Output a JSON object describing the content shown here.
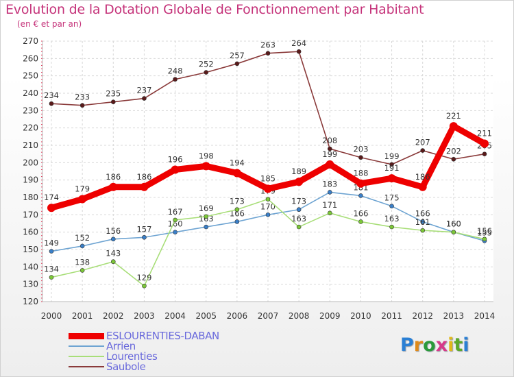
{
  "title": "Evolution de la Dotation Globale de Fonctionnement par Habitant",
  "subtitle": "(en € et par an)",
  "logo": {
    "text": "Proxiti",
    "colors": [
      "#2a7fd4",
      "#e08a1a",
      "#2a9a3a",
      "#d63a8a",
      "#e0b81a",
      "#5aa82a",
      "#2a7fd4"
    ]
  },
  "chart_data": {
    "type": "line",
    "title": "Evolution de la Dotation Globale de Fonctionnement par Habitant",
    "subtitle": "(en € et par an)",
    "x": [
      "2000",
      "2001",
      "2002",
      "2003",
      "2004",
      "2005",
      "2006",
      "2007",
      "2008",
      "2009",
      "2010",
      "2011",
      "2012",
      "2013",
      "2014"
    ],
    "ylim": [
      120,
      270
    ],
    "yticks": [
      "120",
      "130",
      "140",
      "150",
      "160",
      "170",
      "180",
      "190",
      "200",
      "210",
      "220",
      "230",
      "240",
      "250",
      "260",
      "270"
    ],
    "grid": true,
    "legend_position": "bottom-left",
    "series": [
      {
        "name": "ESLOURENTIES-DABAN",
        "color": "#ee0000",
        "point_color": "#ee0000",
        "emphasis": true,
        "values": [
          174,
          179,
          186,
          186,
          196,
          198,
          194,
          185,
          189,
          199,
          188,
          191,
          186,
          221,
          211
        ],
        "labels": [
          "174",
          "179",
          "186",
          "186",
          "196",
          "198",
          "194",
          "185",
          "189",
          "199",
          "188",
          "191",
          "186",
          "221",
          "211"
        ]
      },
      {
        "name": "Arrien",
        "color": "#6ea4d2",
        "point_color": "#3a7fc8",
        "emphasis": false,
        "values": [
          149,
          152,
          156,
          157,
          160,
          163,
          166,
          170,
          173,
          183,
          181,
          175,
          166,
          160,
          155
        ],
        "labels": [
          "149",
          "152",
          "156",
          "157",
          "160",
          "163",
          "166",
          "170",
          "173",
          "183",
          "181",
          "175",
          "166",
          "160",
          "155"
        ]
      },
      {
        "name": "Lourenties",
        "color": "#a8de78",
        "point_color": "#7cc838",
        "emphasis": false,
        "values": [
          134,
          138,
          143,
          129,
          167,
          169,
          173,
          179,
          163,
          171,
          166,
          163,
          161,
          160,
          156
        ],
        "labels": [
          "134",
          "138",
          "143",
          "129",
          "167",
          "169",
          "173",
          "179",
          "163",
          "171",
          "166",
          "163",
          "161",
          "160",
          "156"
        ]
      },
      {
        "name": "Saubole",
        "color": "#8a3a3a",
        "point_color": "#5a1a1a",
        "emphasis": false,
        "values": [
          234,
          233,
          235,
          237,
          248,
          252,
          257,
          263,
          264,
          208,
          203,
          199,
          207,
          202,
          205
        ],
        "labels": [
          "234",
          "233",
          "235",
          "237",
          "248",
          "252",
          "257",
          "263",
          "264",
          "208",
          "203",
          "199",
          "207",
          "202",
          "205"
        ]
      }
    ]
  }
}
